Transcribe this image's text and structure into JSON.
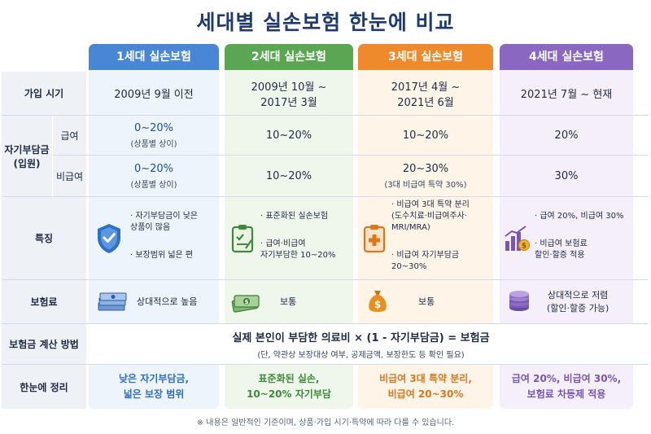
{
  "title": "세대별 실손보험 한눈에 비교",
  "colors": {
    "gen1": "#4a86d6",
    "gen2": "#5aa653",
    "gen3": "#ef8a2c",
    "gen4": "#8a67c0",
    "gen1_bg": "#eef4fc",
    "gen2_bg": "#eff7ec",
    "gen3_bg": "#fff4e8",
    "gen4_bg": "#f4effa"
  },
  "generations": [
    {
      "name": "1세대 실손보험",
      "period": [
        "2009년 9월 이전"
      ],
      "copay_covered": "0~20%",
      "copay_covered_note": "(상품별 상이)",
      "copay_noncovered": "0~20%",
      "copay_noncovered_note": "(상품별 상이)",
      "feature_icon": "shield-check-icon",
      "features": [
        "· 자기부담금이 낮은\n  상품이 많음",
        "· 보장범위 넓은 편"
      ],
      "premium_icon": "cash-stack-icon",
      "premium": "상대적으로 높음",
      "summary": [
        "낮은 자기부담금,",
        "넓은 보장 범위"
      ]
    },
    {
      "name": "2세대 실손보험",
      "period": [
        "2009년 10월 ~",
        "2017년 3월"
      ],
      "copay_covered": "10~20%",
      "copay_covered_note": "",
      "copay_noncovered": "10~20%",
      "copay_noncovered_note": "",
      "feature_icon": "clipboard-check-icon",
      "features": [
        "· 표준화된 실손보험",
        "· 급여·비급여\n  자기부담한 10~20%"
      ],
      "premium_icon": "money-bundle-icon",
      "premium": "보통",
      "summary": [
        "표준화된 실손,",
        "10~20% 자기부담"
      ]
    },
    {
      "name": "3세대 실손보험",
      "period": [
        "2017년 4월 ~",
        "2021년 6월"
      ],
      "copay_covered": "10~20%",
      "copay_covered_note": "",
      "copay_noncovered": "20~30%",
      "copay_noncovered_note": "(3대 비급여 특약 30%)",
      "feature_icon": "medical-clipboard-icon",
      "features": [
        "· 비급여 3대 특약 분리\n  (도수치료·비급여주사·\n  MRI/MRA)",
        "· 비급여 자기부담금\n  20~30%"
      ],
      "premium_icon": "money-bag-icon",
      "premium": "보통",
      "summary": [
        "비급여 3대 특약 분리,",
        "비급여 20~30%"
      ]
    },
    {
      "name": "4세대 실손보험",
      "period": [
        "2021년 7월 ~ 현재"
      ],
      "copay_covered": "20%",
      "copay_covered_note": "",
      "copay_noncovered": "30%",
      "copay_noncovered_note": "",
      "feature_icon": "bar-chart-coin-icon",
      "features": [
        "· 급여 20%, 비급여 30%",
        "· 비급여 보험료\n  할인·할증 적용"
      ],
      "premium_icon": "coin-stack-icon",
      "premium": "상대적으로 저렴\n(할인·할증 가능)",
      "summary": [
        "급여 20%, 비급여 30%,",
        "보험료 차등제 적용"
      ]
    }
  ],
  "rows": {
    "period": "가입 시기",
    "copay": "자기부담금\n(입원)",
    "covered": "급여",
    "noncovered": "비급여",
    "features": "특징",
    "premium": "보험료",
    "calc": "보험금 계산 방법",
    "summary": "한눈에 정리"
  },
  "calc": {
    "formula": "실제 본인이 부담한 의료비 × (1 - 자기부담금) = 보험금",
    "note": "(단, 약관상 보장대상 여부, 공제금액, 보장한도 등 확인 필요)"
  },
  "footnote": "※ 내용은 일반적인 기준이며, 상품·가입 시기·특약에 따라 다를 수 있습니다."
}
